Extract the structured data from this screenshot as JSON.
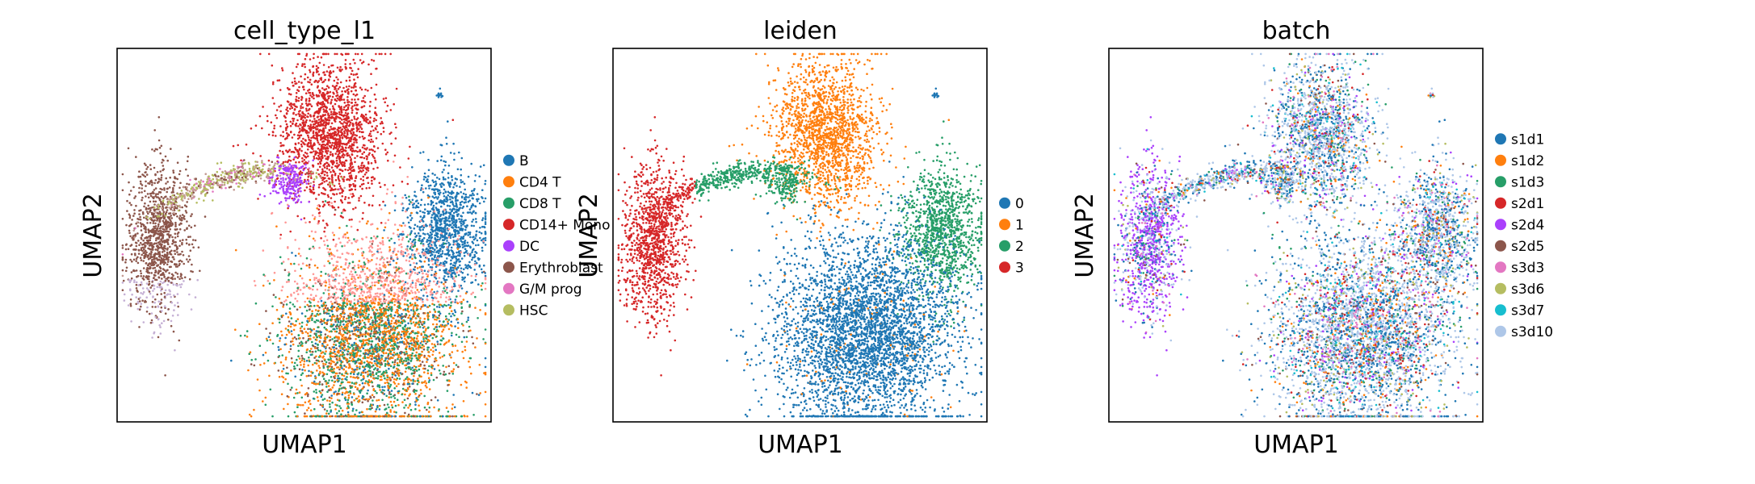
{
  "chart_data": [
    {
      "type": "scatter",
      "title": "cell_type_l1",
      "xlabel": "UMAP1",
      "ylabel": "UMAP2",
      "legend": {
        "placement": "right",
        "entries": [
          {
            "label": "B",
            "color": "#1f77b4"
          },
          {
            "label": "CD4 T",
            "color": "#ff7f0e"
          },
          {
            "label": "CD8 T",
            "color": "#279e68"
          },
          {
            "label": "CD14+ Mono",
            "color": "#d62728"
          },
          {
            "label": "DC",
            "color": "#aa40fc"
          },
          {
            "label": "Erythroblast",
            "color": "#8c564b"
          },
          {
            "label": "G/M prog",
            "color": "#e377c2"
          },
          {
            "label": "HSC",
            "color": "#b5bd61"
          }
        ]
      }
    },
    {
      "type": "scatter",
      "title": "leiden",
      "xlabel": "UMAP1",
      "ylabel": "UMAP2",
      "legend": {
        "placement": "right",
        "entries": [
          {
            "label": "0",
            "color": "#1f77b4"
          },
          {
            "label": "1",
            "color": "#ff7f0e"
          },
          {
            "label": "2",
            "color": "#279e68"
          },
          {
            "label": "3",
            "color": "#d62728"
          }
        ]
      }
    },
    {
      "type": "scatter",
      "title": "batch",
      "xlabel": "UMAP1",
      "ylabel": "UMAP2",
      "legend": {
        "placement": "right",
        "entries": [
          {
            "label": "s1d1",
            "color": "#1f77b4"
          },
          {
            "label": "s1d2",
            "color": "#ff7f0e"
          },
          {
            "label": "s1d3",
            "color": "#279e68"
          },
          {
            "label": "s2d1",
            "color": "#d62728"
          },
          {
            "label": "s2d4",
            "color": "#aa40fc"
          },
          {
            "label": "s2d5",
            "color": "#8c564b"
          },
          {
            "label": "s3d3",
            "color": "#e377c2"
          },
          {
            "label": "s3d6",
            "color": "#b5bd61"
          },
          {
            "label": "s3d7",
            "color": "#17becf"
          },
          {
            "label": "s3d10",
            "color": "#aec7e8"
          }
        ]
      }
    }
  ]
}
